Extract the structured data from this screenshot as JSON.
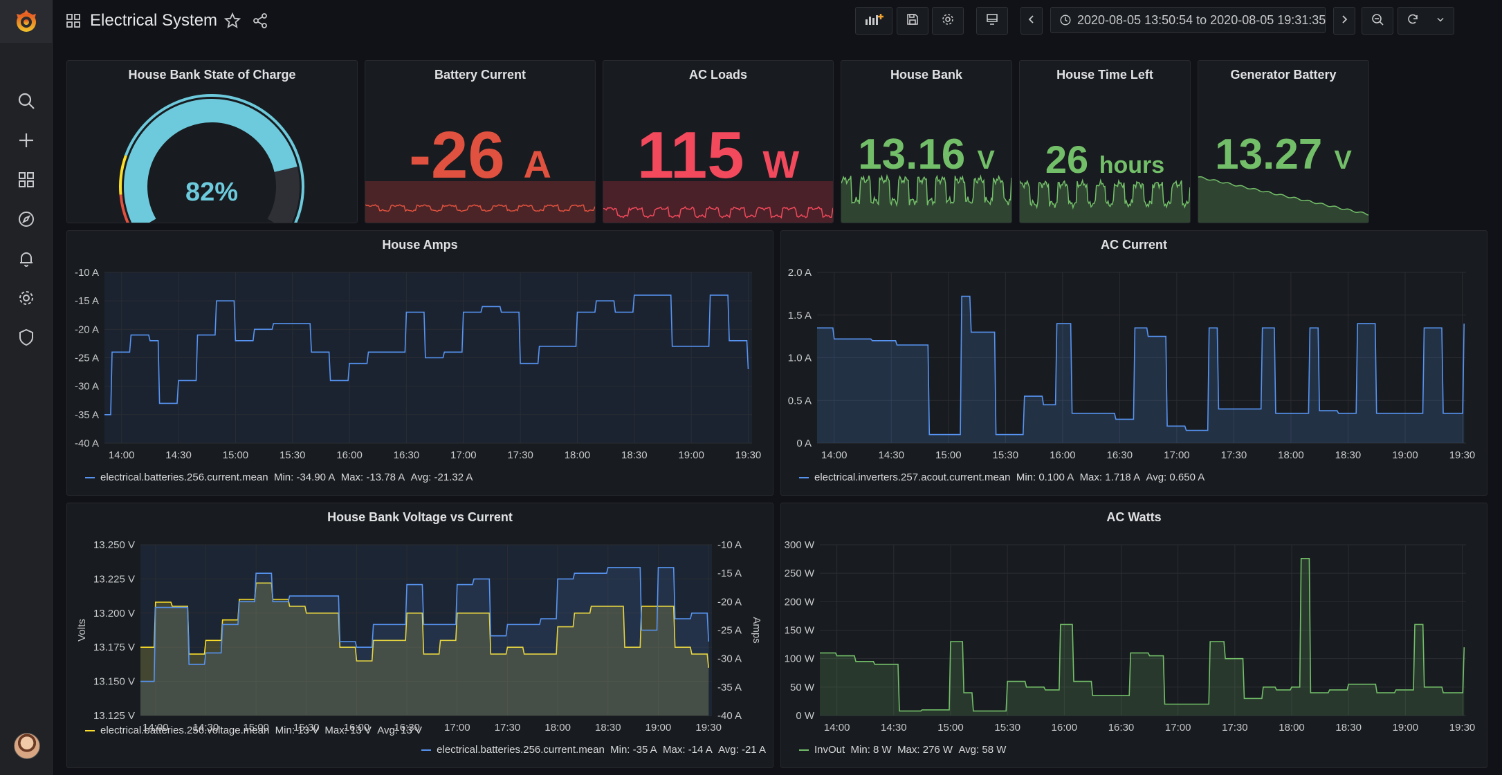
{
  "app": {
    "dashboard_title": "Electrical System",
    "time_range": "2020-08-05 13:50:54 to 2020-08-05 19:31:35",
    "icons": {
      "logo": "grafana-logo-icon",
      "dashboards_grid": "dashboard-grid-icon",
      "star": "star-icon",
      "share": "share-icon",
      "add_panel": "add-panel-icon",
      "save": "save-icon",
      "settings": "gear-icon",
      "tv": "monitor-icon",
      "prev": "chevron-left-icon",
      "clock": "clock-icon",
      "caret": "chevron-down-icon",
      "next": "chevron-right-icon",
      "zoom_out": "zoom-out-icon",
      "refresh": "refresh-icon"
    }
  },
  "sidebar": {
    "items": [
      {
        "name": "search-icon"
      },
      {
        "name": "plus-icon"
      },
      {
        "name": "dashboards-icon"
      },
      {
        "name": "compass-icon"
      },
      {
        "name": "bell-icon"
      },
      {
        "name": "gear-icon"
      },
      {
        "name": "shield-icon"
      }
    ]
  },
  "colors": {
    "blue": "#5794f2",
    "cyan": "#6ccadc",
    "red": "#e0513f",
    "pink_red": "#f2495c",
    "green": "#73bf69",
    "yellow": "#fade2a",
    "background": "#111217",
    "panel": "#181b1f"
  },
  "stats": {
    "soc": {
      "title": "House Bank State of Charge",
      "value": "82%",
      "fraction": 0.82
    },
    "battery_current": {
      "title": "Battery Current",
      "value": "-26",
      "unit": "A"
    },
    "ac_loads": {
      "title": "AC Loads",
      "value": "115",
      "unit": "W"
    },
    "house_bank": {
      "title": "House Bank",
      "value": "13.16",
      "unit": "V"
    },
    "house_time_left": {
      "title": "House Time Left",
      "value": "26",
      "unit": "hours"
    },
    "generator_battery": {
      "title": "Generator Battery",
      "value": "13.27",
      "unit": "V"
    }
  },
  "chart_data": [
    {
      "type": "line",
      "title": "House Amps",
      "yticks": [
        "-10 A",
        "-15 A",
        "-20 A",
        "-25 A",
        "-30 A",
        "-35 A",
        "-40 A"
      ],
      "ylim": [
        -40,
        -10
      ],
      "xticks": [
        "14:00",
        "14:30",
        "15:00",
        "15:30",
        "16:00",
        "16:30",
        "17:00",
        "17:30",
        "18:00",
        "18:30",
        "19:00",
        "19:30"
      ],
      "x": [
        "13:51",
        "13:55",
        "14:05",
        "14:15",
        "14:20",
        "14:30",
        "14:40",
        "14:50",
        "15:00",
        "15:10",
        "15:20",
        "15:30",
        "15:40",
        "15:50",
        "16:00",
        "16:10",
        "16:20",
        "16:30",
        "16:40",
        "16:50",
        "17:00",
        "17:10",
        "17:20",
        "17:30",
        "17:40",
        "17:50",
        "18:00",
        "18:10",
        "18:20",
        "18:30",
        "18:40",
        "18:50",
        "19:00",
        "19:10",
        "19:20",
        "19:30"
      ],
      "series": [
        {
          "name": "electrical.batteries.256.current.mean",
          "color": "#5794f2",
          "values": [
            -35,
            -24,
            -21,
            -22,
            -33,
            -29,
            -21,
            -15,
            -22,
            -20,
            -19,
            -19,
            -24,
            -29,
            -26,
            -24,
            -24,
            -17,
            -25,
            -24,
            -17,
            -16,
            -17,
            -26,
            -23,
            -23,
            -17,
            -15,
            -17,
            -14,
            -14,
            -23,
            -23,
            -14,
            -22,
            -27
          ]
        }
      ],
      "legend": {
        "name": "electrical.batteries.256.current.mean",
        "min": "Min: -34.90 A",
        "max": "Max: -13.78 A",
        "avg": "Avg: -21.32 A"
      }
    },
    {
      "type": "area",
      "title": "AC Current",
      "yticks": [
        "2.0 A",
        "1.5 A",
        "1.0 A",
        "0.5 A",
        "0 A"
      ],
      "ylim": [
        0,
        2.0
      ],
      "xticks": [
        "14:00",
        "14:30",
        "15:00",
        "15:30",
        "16:00",
        "16:30",
        "17:00",
        "17:30",
        "18:00",
        "18:30",
        "19:00",
        "19:30"
      ],
      "x": [
        "13:51",
        "14:00",
        "14:20",
        "14:33",
        "14:50",
        "15:00",
        "15:07",
        "15:12",
        "15:25",
        "15:40",
        "15:50",
        "15:57",
        "16:05",
        "16:15",
        "16:28",
        "16:38",
        "16:45",
        "16:55",
        "17:05",
        "17:17",
        "17:22",
        "17:35",
        "17:45",
        "17:52",
        "18:00",
        "18:10",
        "18:15",
        "18:25",
        "18:35",
        "18:45",
        "18:55",
        "19:10",
        "19:20",
        "19:25",
        "19:29",
        "19:31"
      ],
      "series": [
        {
          "name": "electrical.inverters.257.acout.current.mean",
          "color": "#5794f2",
          "values": [
            1.35,
            1.22,
            1.2,
            1.15,
            0.1,
            0.1,
            1.72,
            1.3,
            0.1,
            0.55,
            0.45,
            1.4,
            0.35,
            0.35,
            0.28,
            1.35,
            1.25,
            0.2,
            0.15,
            1.35,
            0.4,
            0.4,
            1.35,
            0.35,
            0.35,
            1.35,
            0.38,
            0.35,
            1.4,
            0.35,
            0.35,
            1.35,
            0.35,
            0.35,
            0.35,
            1.4
          ]
        }
      ],
      "legend": {
        "name": "electrical.inverters.257.acout.current.mean",
        "min": "Min: 0.100 A",
        "max": "Max: 1.718 A",
        "avg": "Avg: 0.650 A"
      }
    },
    {
      "type": "area",
      "title": "House Bank Voltage vs Current",
      "ylabel": "Volts",
      "y2label": "Amps",
      "yticks": [
        "13.250 V",
        "13.225 V",
        "13.200 V",
        "13.175 V",
        "13.150 V",
        "13.125 V"
      ],
      "ylim": [
        13.125,
        13.25
      ],
      "y2ticks": [
        "-10 A",
        "-15 A",
        "-20 A",
        "-25 A",
        "-30 A",
        "-35 A",
        "-40 A"
      ],
      "y2lim": [
        -40,
        -10
      ],
      "xticks": [
        "14:00",
        "14:30",
        "15:00",
        "15:30",
        "16:00",
        "16:30",
        "17:00",
        "17:30",
        "18:00",
        "18:30",
        "19:00",
        "19:30"
      ],
      "x": [
        "13:51",
        "14:00",
        "14:10",
        "14:20",
        "14:30",
        "14:40",
        "14:50",
        "15:00",
        "15:10",
        "15:20",
        "15:30",
        "15:40",
        "15:50",
        "16:00",
        "16:10",
        "16:20",
        "16:30",
        "16:40",
        "16:50",
        "17:00",
        "17:10",
        "17:20",
        "17:30",
        "17:40",
        "17:50",
        "18:00",
        "18:10",
        "18:20",
        "18:30",
        "18:40",
        "18:50",
        "19:00",
        "19:10",
        "19:20",
        "19:30"
      ],
      "series": [
        {
          "name": "electrical.batteries.256.voltage.mean",
          "axis": "left",
          "color": "#fade2a",
          "values": [
            13.175,
            13.208,
            13.205,
            13.17,
            13.18,
            13.195,
            13.21,
            13.222,
            13.21,
            13.205,
            13.2,
            13.2,
            13.175,
            13.165,
            13.18,
            13.18,
            13.2,
            13.17,
            13.18,
            13.2,
            13.2,
            13.17,
            13.175,
            13.17,
            13.17,
            13.19,
            13.2,
            13.205,
            13.205,
            13.175,
            13.205,
            13.205,
            13.175,
            13.17,
            13.16
          ]
        },
        {
          "name": "electrical.batteries.256.current.mean",
          "axis": "right",
          "color": "#5794f2",
          "values": [
            -34,
            -21,
            -21,
            -31,
            -29,
            -24,
            -20,
            -15,
            -20,
            -19,
            -19,
            -19,
            -27,
            -28,
            -24,
            -24,
            -17,
            -24,
            -24,
            -17,
            -16,
            -26,
            -24,
            -24,
            -23,
            -16,
            -15,
            -15,
            -14,
            -14,
            -25,
            -14,
            -23,
            -22,
            -27
          ]
        }
      ],
      "legend": [
        {
          "name": "electrical.batteries.256.voltage.mean",
          "min": "Min: 13 V",
          "max": "Max: 13 V",
          "avg": "Avg: 13 V"
        },
        {
          "name": "electrical.batteries.256.current.mean",
          "min": "Min: -35 A",
          "max": "Max: -14 A",
          "avg": "Avg: -21 A"
        }
      ]
    },
    {
      "type": "area",
      "title": "AC Watts",
      "yticks": [
        "300 W",
        "250 W",
        "200 W",
        "150 W",
        "100 W",
        "50 W",
        "0 W"
      ],
      "ylim": [
        0,
        300
      ],
      "xticks": [
        "14:00",
        "14:30",
        "15:00",
        "15:30",
        "16:00",
        "16:30",
        "17:00",
        "17:30",
        "18:00",
        "18:30",
        "19:00",
        "19:30"
      ],
      "x": [
        "13:51",
        "14:00",
        "14:10",
        "14:20",
        "14:33",
        "14:45",
        "14:52",
        "15:00",
        "15:07",
        "15:12",
        "15:22",
        "15:30",
        "15:40",
        "15:50",
        "15:58",
        "16:05",
        "16:15",
        "16:27",
        "16:35",
        "16:45",
        "16:53",
        "17:05",
        "17:17",
        "17:25",
        "17:35",
        "17:45",
        "17:52",
        "18:00",
        "18:05",
        "18:10",
        "18:20",
        "18:30",
        "18:45",
        "18:55",
        "19:05",
        "19:10",
        "19:20",
        "19:27",
        "19:31"
      ],
      "series": [
        {
          "name": "InvOut",
          "color": "#73bf69",
          "values": [
            110,
            105,
            95,
            90,
            8,
            10,
            10,
            130,
            40,
            8,
            8,
            60,
            50,
            45,
            160,
            60,
            35,
            35,
            110,
            105,
            20,
            20,
            130,
            100,
            30,
            50,
            45,
            50,
            276,
            40,
            45,
            55,
            40,
            45,
            160,
            50,
            40,
            40,
            120
          ]
        }
      ],
      "legend": {
        "name": "InvOut",
        "min": "Min: 8 W",
        "max": "Max: 276 W",
        "avg": "Avg: 58 W"
      }
    }
  ]
}
